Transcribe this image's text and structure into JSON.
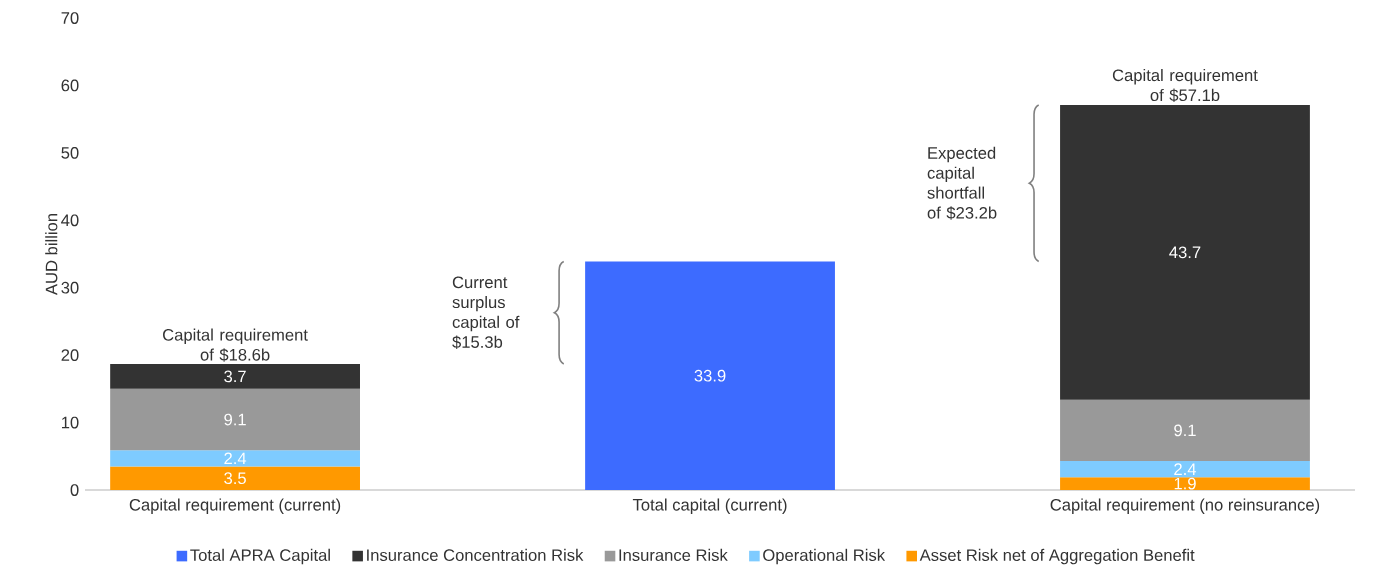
{
  "chart_data": {
    "type": "bar",
    "stacked": true,
    "ylabel": "AUD billion",
    "categories": [
      "Capital requirement (current)",
      "Total capital (current)",
      "Capital requirement (no reinsurance)"
    ],
    "series": [
      {
        "name": "Asset Risk net of Aggregation Benefit",
        "color": "#ff9900",
        "values": [
          3.5,
          null,
          1.9
        ]
      },
      {
        "name": "Operational Risk",
        "color": "#7ecbff",
        "values": [
          2.4,
          null,
          2.4
        ]
      },
      {
        "name": "Insurance Risk",
        "color": "#999999",
        "values": [
          9.1,
          null,
          9.1
        ]
      },
      {
        "name": "Insurance Concentration Risk",
        "color": "#333333",
        "values": [
          3.7,
          null,
          43.7
        ]
      },
      {
        "name": "Total APRA Capital",
        "color": "#3d6bff",
        "values": [
          null,
          33.9,
          null
        ]
      }
    ],
    "ylim": [
      0,
      70
    ],
    "yticks": [
      0,
      10,
      20,
      30,
      40,
      50,
      60,
      70
    ],
    "data_labels": true,
    "legend": "bottom",
    "annotations": [
      {
        "text": "Capital requirement of $18.6b",
        "x": "Capital requirement (current)",
        "y": 18.6
      },
      "Current surplus capital of $15.3b",
      "Expected capital shortfall of $23.2b",
      {
        "text": "Capital requirement of $57.1b",
        "x": "Capital requirement (no reinsurance)",
        "y": 57.1
      }
    ]
  }
}
